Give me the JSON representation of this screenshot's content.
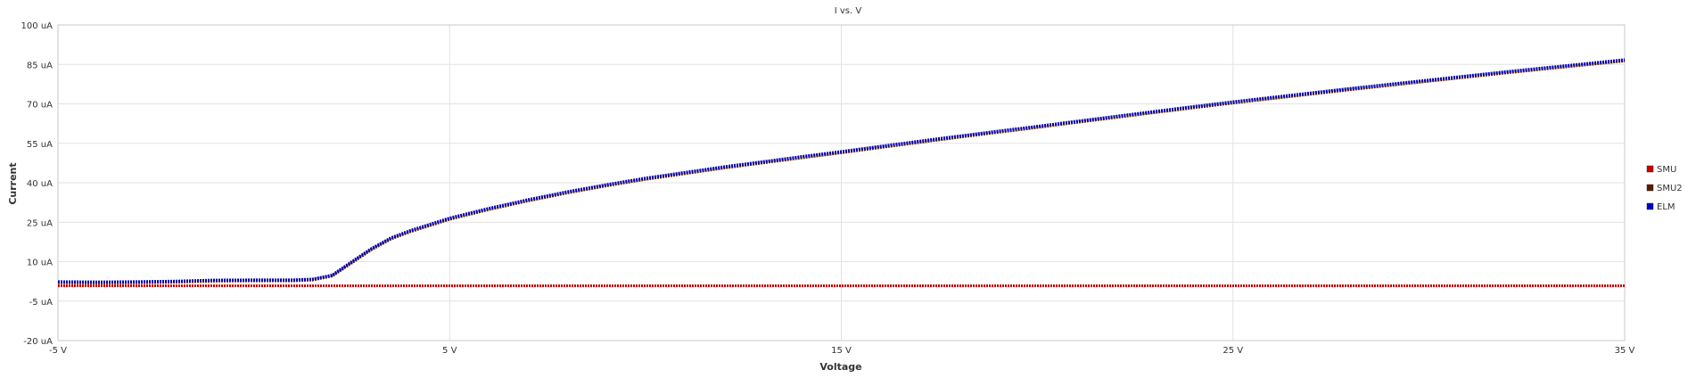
{
  "chart_data": {
    "type": "line",
    "title": "I vs. V",
    "xlabel": "Voltage",
    "ylabel": "Current",
    "xlim": [
      -5,
      35
    ],
    "ylim": [
      -20,
      100
    ],
    "x_ticks": [
      -5,
      5,
      15,
      25,
      35
    ],
    "x_tick_labels": [
      "-5 V",
      "5 V",
      "15 V",
      "25 V",
      "35 V"
    ],
    "y_ticks": [
      100,
      85,
      70,
      55,
      40,
      25,
      10,
      -5,
      -20
    ],
    "y_tick_labels": [
      "100 uA",
      "85 uA",
      "70 uA",
      "55 uA",
      "40 uA",
      "25 uA",
      "10 uA",
      "-5 uA",
      "-20 uA"
    ],
    "grid": true,
    "legend_position": "right",
    "x": [
      -5,
      -4,
      -3,
      -2,
      -1,
      0,
      1,
      1.5,
      2,
      2.5,
      3,
      3.5,
      4,
      5,
      6,
      7,
      8,
      9,
      10,
      12,
      14,
      15,
      16,
      18,
      20,
      22,
      24,
      25,
      26,
      28,
      30,
      32,
      34,
      35
    ],
    "series": [
      {
        "name": "SMU",
        "color": "#cc0000",
        "values": [
          0.8,
          0.8,
          0.8,
          0.8,
          0.8,
          0.8,
          0.8,
          0.8,
          0.8,
          0.8,
          0.8,
          0.8,
          0.8,
          0.8,
          0.8,
          0.8,
          0.8,
          0.8,
          0.8,
          0.8,
          0.8,
          0.8,
          0.8,
          0.8,
          0.8,
          0.8,
          0.8,
          0.8,
          0.8,
          0.8,
          0.8,
          0.8,
          0.8,
          0.8
        ]
      },
      {
        "name": "SMU2",
        "color": "#5a1a00",
        "values": [
          2.0,
          1.9,
          2.0,
          2.2,
          2.6,
          2.7,
          2.7,
          3.0,
          4.5,
          9.5,
          14.5,
          18.6,
          21.4,
          26.1,
          29.8,
          33.1,
          36.1,
          38.8,
          41.3,
          45.6,
          49.5,
          51.4,
          53.4,
          57.3,
          61.0,
          64.8,
          68.5,
          70.3,
          72.0,
          75.4,
          78.6,
          81.8,
          84.8,
          86.3
        ]
      },
      {
        "name": "ELM",
        "color": "#0000cc",
        "values": [
          2.4,
          2.3,
          2.4,
          2.6,
          3.0,
          3.1,
          3.1,
          3.4,
          4.9,
          10.0,
          15.0,
          19.1,
          21.9,
          26.6,
          30.3,
          33.6,
          36.6,
          39.3,
          41.8,
          46.1,
          50.0,
          51.9,
          53.9,
          57.8,
          61.5,
          65.3,
          69.0,
          70.8,
          72.5,
          75.9,
          79.1,
          82.3,
          85.3,
          86.8
        ]
      }
    ]
  }
}
